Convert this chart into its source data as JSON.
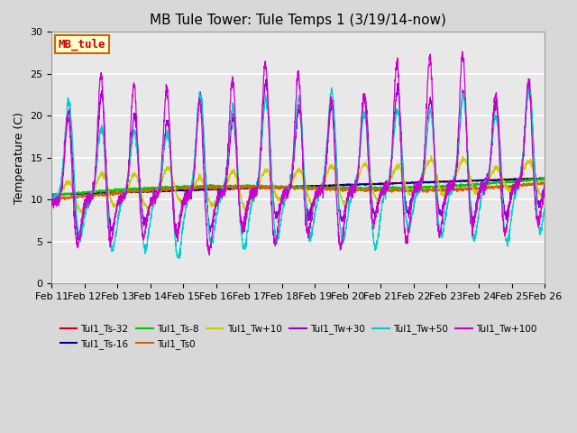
{
  "title": "MB Tule Tower: Tule Temps 1 (3/19/14-now)",
  "ylabel": "Temperature (C)",
  "ylim": [
    0,
    30
  ],
  "yticks": [
    0,
    5,
    10,
    15,
    20,
    25,
    30
  ],
  "xtick_labels": [
    "Feb 11",
    "Feb 12",
    "Feb 13",
    "Feb 14",
    "Feb 15",
    "Feb 16",
    "Feb 17",
    "Feb 18",
    "Feb 19",
    "Feb 20",
    "Feb 21",
    "Feb 22",
    "Feb 23",
    "Feb 24",
    "Feb 25",
    "Feb 26"
  ],
  "fig_bg_color": "#d8d8d8",
  "plot_bg_color": "#e8e8e8",
  "grid_color": "#ffffff",
  "series_colors": {
    "Tul1_Ts-32": "#cc0000",
    "Tul1_Ts-16": "#000099",
    "Tul1_Ts-8": "#00cc00",
    "Tul1_Ts0": "#cc6600",
    "Tul1_Tw+10": "#cccc00",
    "Tul1_Tw+30": "#9900cc",
    "Tul1_Tw+50": "#00cccc",
    "Tul1_Tw+100": "#cc00cc"
  },
  "legend_box": {
    "text": "MB_tule",
    "facecolor": "#ffffcc",
    "edgecolor": "#cc6600",
    "textcolor": "#cc0000"
  },
  "title_fontsize": 11,
  "axis_fontsize": 9,
  "tick_fontsize": 8
}
